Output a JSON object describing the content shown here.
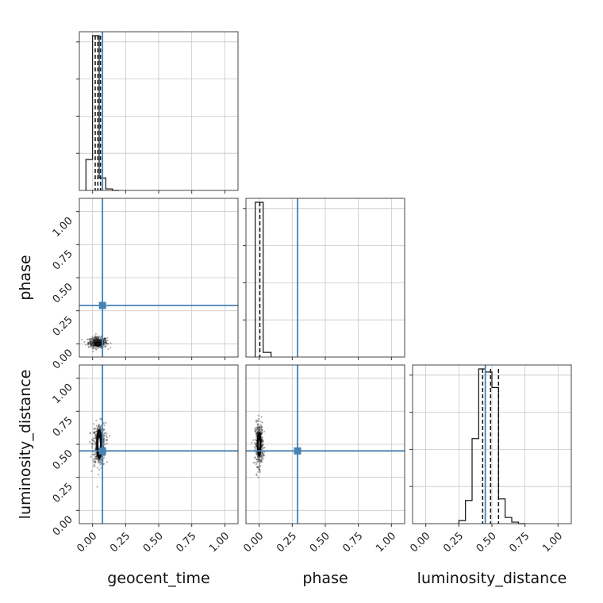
{
  "chart_data": {
    "type": "corner",
    "parameters": [
      "geocent_time",
      "phase",
      "luminosity_distance"
    ],
    "axis_range": [
      -0.1,
      1.1
    ],
    "ticks": [
      0.0,
      0.25,
      0.5,
      0.75,
      1.0
    ],
    "tick_labels": [
      "0.00",
      "0.25",
      "0.50",
      "0.75",
      "1.00"
    ],
    "truth_color": "#4682b4",
    "truths": {
      "geocent_time": 0.075,
      "phase": 0.29,
      "luminosity_distance": 0.45
    },
    "grid": true,
    "histograms": {
      "geocent_time": {
        "bin_edges": [
          -0.05,
          0.0,
          0.05,
          0.1,
          0.15,
          0.2
        ],
        "counts": [
          0.2,
          1.0,
          0.08,
          0.01,
          0.0
        ],
        "quantiles": [
          0.02,
          0.04,
          0.06
        ]
      },
      "phase": {
        "bin_edges": [
          -0.03,
          0.03,
          0.09
        ],
        "counts": [
          1.0,
          0.03
        ],
        "quantiles": [
          0.005
        ]
      },
      "luminosity_distance": {
        "bin_edges": [
          0.25,
          0.3,
          0.35,
          0.4,
          0.45,
          0.5,
          0.55,
          0.6,
          0.65,
          0.7,
          0.75
        ],
        "counts": [
          0.02,
          0.15,
          0.55,
          1.0,
          0.98,
          0.88,
          0.16,
          0.04,
          0.01,
          0.0
        ],
        "quantiles": [
          0.43,
          0.49,
          0.55
        ]
      }
    },
    "joint": [
      {
        "x": "geocent_time",
        "y": "phase",
        "center": [
          0.04,
          0.01
        ],
        "spread": [
          0.035,
          0.02
        ],
        "core": [
          0.04,
          0.0,
          0.025,
          0.015
        ]
      },
      {
        "x": "geocent_time",
        "y": "luminosity_distance",
        "center": [
          0.05,
          0.5
        ],
        "spread": [
          0.025,
          0.08
        ],
        "core": [
          0.05,
          0.5,
          0.018,
          0.11
        ]
      },
      {
        "x": "phase",
        "y": "luminosity_distance",
        "center": [
          0.0,
          0.5
        ],
        "spread": [
          0.015,
          0.08
        ],
        "core": [
          0.0,
          0.5,
          0.012,
          0.09
        ]
      }
    ]
  }
}
